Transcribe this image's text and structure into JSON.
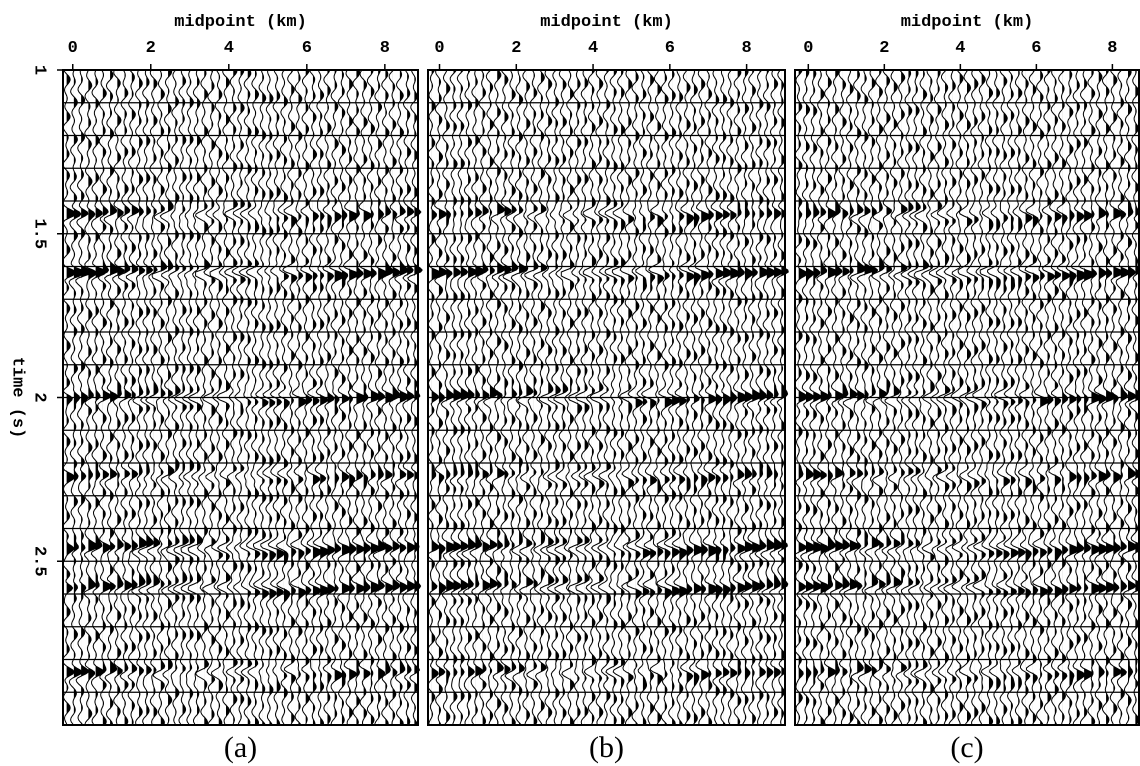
{
  "chart_data": [
    {
      "type": "wiggle",
      "xlabel": "midpoint (km)",
      "xlim": [
        -0.25,
        8.85
      ],
      "xticks": [
        0,
        2,
        4,
        6,
        8
      ],
      "ylabel": "time (s)",
      "ylim": [
        1,
        3
      ],
      "yticks": [
        1,
        1.5,
        2,
        2.5
      ],
      "caption": "(a)"
    },
    {
      "type": "wiggle",
      "xlabel": "midpoint (km)",
      "xlim": [
        -0.3,
        9.0
      ],
      "xticks": [
        0,
        2,
        4,
        6,
        8
      ],
      "ylim": [
        1,
        3
      ],
      "caption": "(b)"
    },
    {
      "type": "wiggle",
      "xlabel": "midpoint (km)",
      "xlim": [
        -0.35,
        8.7
      ],
      "xticks": [
        0,
        2,
        4,
        6,
        8
      ],
      "ylim": [
        1,
        3
      ],
      "caption": "(c)"
    }
  ]
}
